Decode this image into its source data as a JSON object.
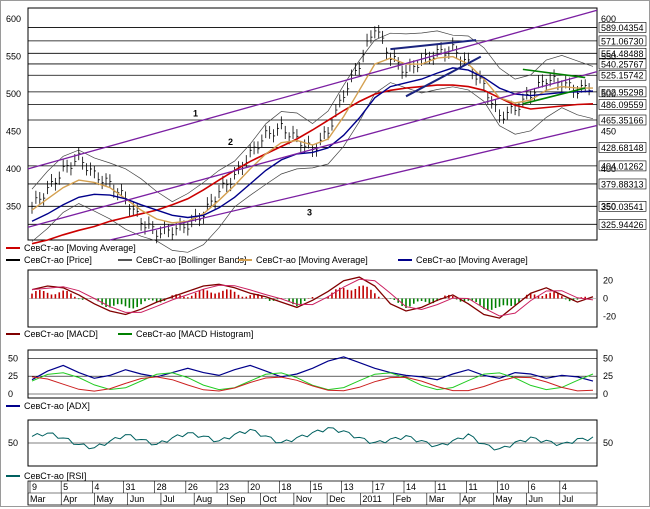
{
  "chart_data": [
    {
      "type": "line",
      "panel": "price",
      "ylim": [
        305,
        615
      ],
      "price_ticks": [
        350,
        400,
        450,
        500,
        550,
        600
      ],
      "level_lines": [
        "589.04354",
        "571.06730",
        "554.48488",
        "540.25767",
        "525.15742",
        "502.95298",
        "486.09559",
        "465.35166",
        "428.68148",
        "404.01262",
        "379.88313",
        "350.03541",
        "325.94426"
      ],
      "level_values": [
        589.04354,
        571.0673,
        554.48488,
        540.25767,
        525.15742,
        502.95298,
        486.09559,
        465.35166,
        428.68148,
        404.01262,
        379.88313,
        350.03541,
        325.94426
      ],
      "channel_labels": [
        "1",
        "2",
        "3"
      ],
      "x": [
        0,
        4,
        8,
        12,
        16,
        20,
        24,
        28,
        32,
        36,
        40,
        44,
        48,
        52,
        56,
        60,
        64,
        68,
        72,
        76,
        80,
        84,
        88,
        92,
        96,
        100,
        104,
        108,
        112,
        116,
        120,
        124,
        128,
        132,
        136,
        140,
        144
      ],
      "price_close": [
        350,
        372,
        398,
        415,
        392,
        380,
        360,
        330,
        315,
        318,
        325,
        340,
        370,
        390,
        420,
        445,
        455,
        440,
        425,
        450,
        500,
        540,
        590,
        550,
        530,
        545,
        555,
        560,
        540,
        510,
        470,
        480,
        500,
        520,
        515,
        505,
        512
      ],
      "series": [
        {
          "name": "СевСт-ао [Moving Average]",
          "color": "#cc0000",
          "values": [
            300,
            305,
            312,
            318,
            323,
            330,
            335,
            340,
            345,
            352,
            360,
            372,
            385,
            398,
            410,
            420,
            430,
            440,
            452,
            465,
            478,
            490,
            500,
            505,
            508,
            510,
            512,
            512,
            510,
            505,
            495,
            485,
            480,
            482,
            484,
            486,
            487
          ]
        },
        {
          "name": "СевСт-ао [Price]",
          "color": "#000000"
        },
        {
          "name": "СевСт-ао [Bollinger Bands]",
          "color": "#555555"
        },
        {
          "name": "СевСт-ао [Moving Average]",
          "color": "#d4a050",
          "values": [
            345,
            360,
            375,
            385,
            382,
            375,
            360,
            345,
            333,
            328,
            330,
            340,
            358,
            378,
            400,
            420,
            435,
            438,
            432,
            440,
            470,
            505,
            540,
            548,
            540,
            540,
            548,
            550,
            540,
            520,
            495,
            488,
            492,
            505,
            510,
            508,
            508
          ]
        },
        {
          "name": "СевСт-ао [Moving Average]",
          "color": "#00008b",
          "values": [
            330,
            340,
            352,
            362,
            366,
            365,
            360,
            352,
            345,
            338,
            335,
            338,
            348,
            362,
            380,
            398,
            412,
            420,
            422,
            428,
            445,
            468,
            495,
            510,
            515,
            520,
            528,
            535,
            532,
            522,
            508,
            500,
            498,
            500,
            502,
            503,
            504
          ]
        }
      ]
    },
    {
      "type": "line",
      "panel": "macd",
      "ticks": [
        20,
        0,
        -20
      ],
      "series": [
        {
          "name": "СевСт-ао [MACD]",
          "color": "#800000",
          "values": [
            10,
            14,
            12,
            4,
            -6,
            -14,
            -18,
            -12,
            -4,
            2,
            8,
            14,
            16,
            12,
            6,
            2,
            -4,
            -10,
            -2,
            8,
            20,
            24,
            14,
            -6,
            -14,
            -10,
            -2,
            4,
            -6,
            -18,
            -22,
            -8,
            6,
            12,
            4,
            -4,
            2
          ]
        },
        {
          "name": "СевСт-ао [MACD Histogram]",
          "color": "#008000"
        }
      ]
    },
    {
      "type": "line",
      "panel": "adx",
      "ticks": [
        50,
        25,
        0
      ],
      "series": [
        {
          "name": "СевСт-ао [ADX]",
          "color": "#00008b",
          "values": [
            20,
            32,
            40,
            30,
            22,
            26,
            34,
            28,
            24,
            30,
            36,
            30,
            26,
            34,
            40,
            32,
            24,
            28,
            36,
            46,
            52,
            44,
            36,
            30,
            26,
            24,
            20,
            28,
            34,
            26,
            22,
            30,
            28,
            22,
            26,
            24,
            18
          ]
        }
      ]
    },
    {
      "type": "line",
      "panel": "rsi",
      "ticks": [
        50
      ],
      "series": [
        {
          "name": "СевСт-ао [RSI]",
          "color": "#006060",
          "values": [
            58,
            62,
            56,
            48,
            44,
            52,
            60,
            54,
            48,
            56,
            62,
            58,
            52,
            60,
            66,
            58,
            50,
            56,
            62,
            68,
            64,
            56,
            50,
            54,
            58,
            52,
            46,
            52,
            60,
            48,
            42,
            50,
            56,
            52,
            48,
            54,
            56
          ]
        }
      ]
    }
  ],
  "axis": {
    "top_labels": [
      "9",
      "5",
      "4",
      "31",
      "28",
      "26",
      "23",
      "20",
      "18",
      "15",
      "13",
      "17",
      "14",
      "11",
      "11",
      "10",
      "6",
      "4"
    ],
    "months": [
      "Mar",
      "Apr",
      "May",
      "Jun",
      "Jul",
      "Aug",
      "Sep",
      "Oct",
      "Nov",
      "Dec",
      "2011",
      "Feb",
      "Mar",
      "Apr",
      "May",
      "Jun",
      "Jul"
    ]
  },
  "colors": {
    "grid": "#000000",
    "channel": "#7b1fa2",
    "blue_trend": "#1a237e",
    "green_trend": "#008000"
  }
}
